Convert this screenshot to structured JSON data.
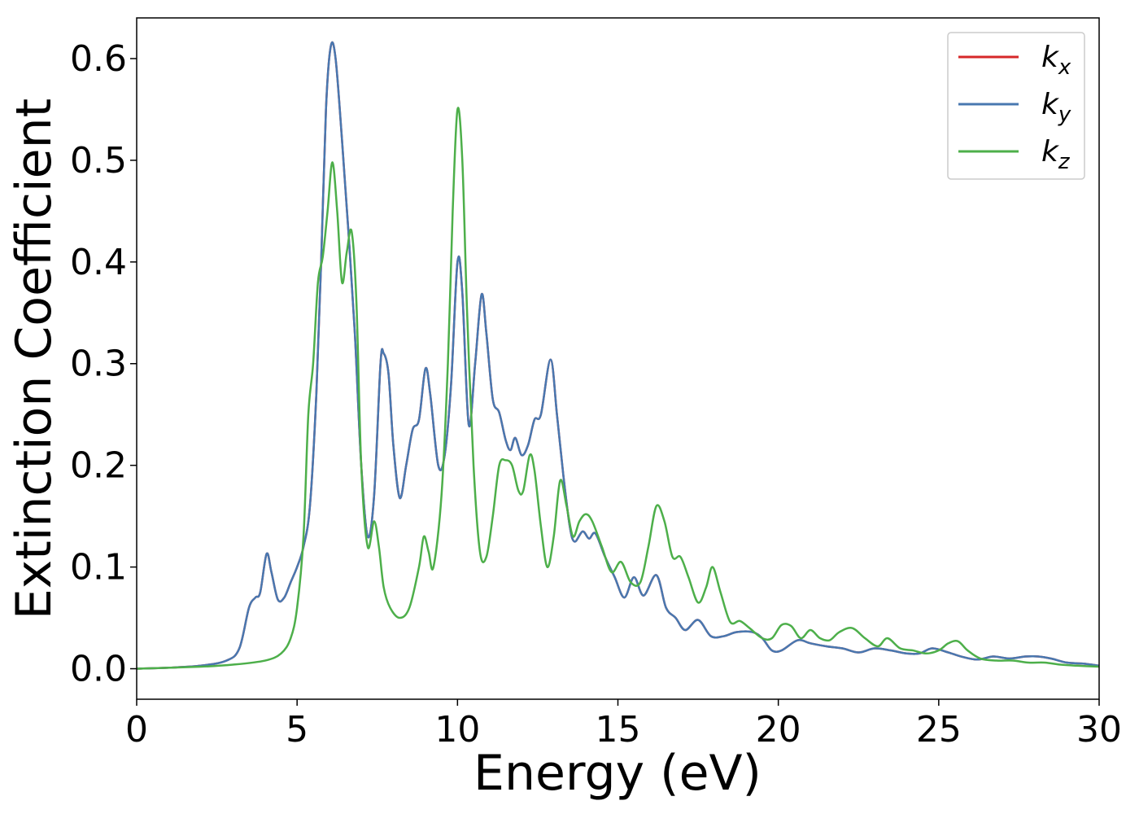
{
  "chart_data": {
    "type": "line",
    "xlabel": "Energy (eV)",
    "ylabel": "Extinction Coefficient",
    "xlim": [
      0,
      30
    ],
    "ylim": [
      -0.03,
      0.64
    ],
    "xticks": [
      0,
      5,
      10,
      15,
      20,
      25,
      30
    ],
    "yticks": [
      0.0,
      0.1,
      0.2,
      0.3,
      0.4,
      0.5,
      0.6
    ],
    "xtick_labels": [
      "0",
      "5",
      "10",
      "15",
      "20",
      "25",
      "30"
    ],
    "ytick_labels": [
      "0.0",
      "0.1",
      "0.2",
      "0.3",
      "0.4",
      "0.5",
      "0.6"
    ],
    "grid": false,
    "legend_position": "top-right",
    "series": [
      {
        "name": "k",
        "subscript": "x",
        "color": "#d62728",
        "points": [
          [
            0,
            0.0
          ],
          [
            1,
            0.001
          ],
          [
            2,
            0.003
          ],
          [
            2.8,
            0.008
          ],
          [
            3.2,
            0.02
          ],
          [
            3.5,
            0.06
          ],
          [
            3.7,
            0.07
          ],
          [
            3.85,
            0.075
          ],
          [
            4.05,
            0.113
          ],
          [
            4.2,
            0.095
          ],
          [
            4.4,
            0.068
          ],
          [
            4.6,
            0.07
          ],
          [
            4.8,
            0.085
          ],
          [
            5.0,
            0.1
          ],
          [
            5.2,
            0.12
          ],
          [
            5.4,
            0.16
          ],
          [
            5.6,
            0.27
          ],
          [
            5.75,
            0.4
          ],
          [
            5.9,
            0.55
          ],
          [
            6.05,
            0.612
          ],
          [
            6.2,
            0.6
          ],
          [
            6.4,
            0.52
          ],
          [
            6.6,
            0.43
          ],
          [
            6.8,
            0.33
          ],
          [
            7.0,
            0.2
          ],
          [
            7.2,
            0.13
          ],
          [
            7.4,
            0.17
          ],
          [
            7.6,
            0.3
          ],
          [
            7.7,
            0.31
          ],
          [
            7.85,
            0.29
          ],
          [
            8.0,
            0.22
          ],
          [
            8.2,
            0.168
          ],
          [
            8.4,
            0.2
          ],
          [
            8.6,
            0.235
          ],
          [
            8.8,
            0.245
          ],
          [
            9.0,
            0.295
          ],
          [
            9.15,
            0.27
          ],
          [
            9.4,
            0.2
          ],
          [
            9.6,
            0.21
          ],
          [
            9.8,
            0.28
          ],
          [
            10.0,
            0.4
          ],
          [
            10.15,
            0.37
          ],
          [
            10.35,
            0.24
          ],
          [
            10.55,
            0.3
          ],
          [
            10.75,
            0.368
          ],
          [
            10.9,
            0.33
          ],
          [
            11.1,
            0.265
          ],
          [
            11.3,
            0.252
          ],
          [
            11.5,
            0.225
          ],
          [
            11.65,
            0.215
          ],
          [
            11.8,
            0.227
          ],
          [
            12.0,
            0.21
          ],
          [
            12.2,
            0.22
          ],
          [
            12.4,
            0.245
          ],
          [
            12.6,
            0.25
          ],
          [
            12.9,
            0.304
          ],
          [
            13.1,
            0.25
          ],
          [
            13.3,
            0.19
          ],
          [
            13.5,
            0.14
          ],
          [
            13.65,
            0.125
          ],
          [
            13.9,
            0.135
          ],
          [
            14.1,
            0.128
          ],
          [
            14.3,
            0.133
          ],
          [
            14.6,
            0.11
          ],
          [
            14.9,
            0.09
          ],
          [
            15.2,
            0.07
          ],
          [
            15.5,
            0.09
          ],
          [
            15.8,
            0.072
          ],
          [
            16.2,
            0.092
          ],
          [
            16.5,
            0.06
          ],
          [
            16.8,
            0.05
          ],
          [
            17.1,
            0.038
          ],
          [
            17.5,
            0.048
          ],
          [
            17.9,
            0.032
          ],
          [
            18.3,
            0.032
          ],
          [
            18.7,
            0.036
          ],
          [
            19.2,
            0.036
          ],
          [
            19.5,
            0.03
          ],
          [
            19.8,
            0.018
          ],
          [
            20.1,
            0.018
          ],
          [
            20.6,
            0.028
          ],
          [
            21.0,
            0.025
          ],
          [
            21.5,
            0.022
          ],
          [
            22.0,
            0.02
          ],
          [
            22.5,
            0.016
          ],
          [
            23.0,
            0.02
          ],
          [
            23.5,
            0.018
          ],
          [
            24.0,
            0.015
          ],
          [
            24.4,
            0.015
          ],
          [
            24.8,
            0.02
          ],
          [
            25.3,
            0.016
          ],
          [
            25.7,
            0.012
          ],
          [
            26.2,
            0.009
          ],
          [
            26.7,
            0.012
          ],
          [
            27.2,
            0.01
          ],
          [
            27.7,
            0.012
          ],
          [
            28.1,
            0.012
          ],
          [
            28.5,
            0.01
          ],
          [
            29.0,
            0.006
          ],
          [
            29.5,
            0.005
          ],
          [
            30,
            0.003
          ]
        ]
      },
      {
        "name": "k",
        "subscript": "y",
        "color": "#4878b0",
        "points": [
          [
            0,
            0.0
          ],
          [
            1,
            0.001
          ],
          [
            2,
            0.003
          ],
          [
            2.8,
            0.008
          ],
          [
            3.2,
            0.02
          ],
          [
            3.5,
            0.06
          ],
          [
            3.7,
            0.07
          ],
          [
            3.85,
            0.075
          ],
          [
            4.05,
            0.113
          ],
          [
            4.2,
            0.095
          ],
          [
            4.4,
            0.068
          ],
          [
            4.6,
            0.07
          ],
          [
            4.8,
            0.085
          ],
          [
            5.0,
            0.1
          ],
          [
            5.2,
            0.12
          ],
          [
            5.4,
            0.16
          ],
          [
            5.6,
            0.27
          ],
          [
            5.75,
            0.4
          ],
          [
            5.9,
            0.55
          ],
          [
            6.05,
            0.612
          ],
          [
            6.2,
            0.6
          ],
          [
            6.4,
            0.52
          ],
          [
            6.6,
            0.43
          ],
          [
            6.8,
            0.33
          ],
          [
            7.0,
            0.2
          ],
          [
            7.2,
            0.13
          ],
          [
            7.4,
            0.17
          ],
          [
            7.6,
            0.3
          ],
          [
            7.7,
            0.31
          ],
          [
            7.85,
            0.29
          ],
          [
            8.0,
            0.22
          ],
          [
            8.2,
            0.168
          ],
          [
            8.4,
            0.2
          ],
          [
            8.6,
            0.235
          ],
          [
            8.8,
            0.245
          ],
          [
            9.0,
            0.295
          ],
          [
            9.15,
            0.27
          ],
          [
            9.4,
            0.2
          ],
          [
            9.6,
            0.21
          ],
          [
            9.8,
            0.28
          ],
          [
            10.0,
            0.4
          ],
          [
            10.15,
            0.37
          ],
          [
            10.35,
            0.24
          ],
          [
            10.55,
            0.3
          ],
          [
            10.75,
            0.368
          ],
          [
            10.9,
            0.33
          ],
          [
            11.1,
            0.265
          ],
          [
            11.3,
            0.252
          ],
          [
            11.5,
            0.225
          ],
          [
            11.65,
            0.215
          ],
          [
            11.8,
            0.227
          ],
          [
            12.0,
            0.21
          ],
          [
            12.2,
            0.22
          ],
          [
            12.4,
            0.245
          ],
          [
            12.6,
            0.25
          ],
          [
            12.9,
            0.304
          ],
          [
            13.1,
            0.25
          ],
          [
            13.3,
            0.19
          ],
          [
            13.5,
            0.14
          ],
          [
            13.65,
            0.125
          ],
          [
            13.9,
            0.135
          ],
          [
            14.1,
            0.128
          ],
          [
            14.3,
            0.133
          ],
          [
            14.6,
            0.11
          ],
          [
            14.9,
            0.09
          ],
          [
            15.2,
            0.07
          ],
          [
            15.5,
            0.09
          ],
          [
            15.8,
            0.072
          ],
          [
            16.2,
            0.092
          ],
          [
            16.5,
            0.06
          ],
          [
            16.8,
            0.05
          ],
          [
            17.1,
            0.038
          ],
          [
            17.5,
            0.048
          ],
          [
            17.9,
            0.032
          ],
          [
            18.3,
            0.032
          ],
          [
            18.7,
            0.036
          ],
          [
            19.2,
            0.036
          ],
          [
            19.5,
            0.03
          ],
          [
            19.8,
            0.018
          ],
          [
            20.1,
            0.018
          ],
          [
            20.6,
            0.028
          ],
          [
            21.0,
            0.025
          ],
          [
            21.5,
            0.022
          ],
          [
            22.0,
            0.02
          ],
          [
            22.5,
            0.016
          ],
          [
            23.0,
            0.02
          ],
          [
            23.5,
            0.018
          ],
          [
            24.0,
            0.015
          ],
          [
            24.4,
            0.015
          ],
          [
            24.8,
            0.02
          ],
          [
            25.3,
            0.016
          ],
          [
            25.7,
            0.012
          ],
          [
            26.2,
            0.009
          ],
          [
            26.7,
            0.012
          ],
          [
            27.2,
            0.01
          ],
          [
            27.7,
            0.012
          ],
          [
            28.1,
            0.012
          ],
          [
            28.5,
            0.01
          ],
          [
            29.0,
            0.006
          ],
          [
            29.5,
            0.005
          ],
          [
            30,
            0.003
          ]
        ]
      },
      {
        "name": "k",
        "subscript": "z",
        "color": "#4daf4a",
        "points": [
          [
            0,
            0.0
          ],
          [
            2,
            0.002
          ],
          [
            3,
            0.004
          ],
          [
            4,
            0.008
          ],
          [
            4.5,
            0.015
          ],
          [
            4.8,
            0.03
          ],
          [
            5.0,
            0.06
          ],
          [
            5.2,
            0.13
          ],
          [
            5.35,
            0.25
          ],
          [
            5.5,
            0.3
          ],
          [
            5.65,
            0.38
          ],
          [
            5.8,
            0.405
          ],
          [
            5.95,
            0.45
          ],
          [
            6.1,
            0.498
          ],
          [
            6.25,
            0.45
          ],
          [
            6.4,
            0.38
          ],
          [
            6.55,
            0.41
          ],
          [
            6.7,
            0.43
          ],
          [
            6.85,
            0.36
          ],
          [
            7.0,
            0.2
          ],
          [
            7.2,
            0.12
          ],
          [
            7.4,
            0.145
          ],
          [
            7.55,
            0.12
          ],
          [
            7.7,
            0.08
          ],
          [
            7.9,
            0.06
          ],
          [
            8.2,
            0.05
          ],
          [
            8.5,
            0.06
          ],
          [
            8.8,
            0.1
          ],
          [
            8.95,
            0.13
          ],
          [
            9.1,
            0.115
          ],
          [
            9.25,
            0.1
          ],
          [
            9.5,
            0.17
          ],
          [
            9.7,
            0.3
          ],
          [
            9.85,
            0.45
          ],
          [
            10.0,
            0.55
          ],
          [
            10.15,
            0.5
          ],
          [
            10.3,
            0.35
          ],
          [
            10.5,
            0.2
          ],
          [
            10.7,
            0.115
          ],
          [
            10.9,
            0.11
          ],
          [
            11.1,
            0.15
          ],
          [
            11.3,
            0.2
          ],
          [
            11.5,
            0.205
          ],
          [
            11.7,
            0.2
          ],
          [
            11.9,
            0.175
          ],
          [
            12.05,
            0.175
          ],
          [
            12.25,
            0.21
          ],
          [
            12.4,
            0.195
          ],
          [
            12.6,
            0.14
          ],
          [
            12.8,
            0.1
          ],
          [
            13.0,
            0.13
          ],
          [
            13.2,
            0.185
          ],
          [
            13.4,
            0.16
          ],
          [
            13.6,
            0.13
          ],
          [
            13.8,
            0.145
          ],
          [
            14.0,
            0.152
          ],
          [
            14.2,
            0.145
          ],
          [
            14.5,
            0.12
          ],
          [
            14.8,
            0.095
          ],
          [
            15.1,
            0.105
          ],
          [
            15.4,
            0.085
          ],
          [
            15.7,
            0.085
          ],
          [
            15.95,
            0.12
          ],
          [
            16.2,
            0.16
          ],
          [
            16.45,
            0.145
          ],
          [
            16.7,
            0.11
          ],
          [
            16.95,
            0.11
          ],
          [
            17.2,
            0.09
          ],
          [
            17.5,
            0.065
          ],
          [
            17.75,
            0.08
          ],
          [
            17.95,
            0.1
          ],
          [
            18.2,
            0.075
          ],
          [
            18.5,
            0.046
          ],
          [
            18.8,
            0.047
          ],
          [
            19.1,
            0.04
          ],
          [
            19.5,
            0.03
          ],
          [
            19.8,
            0.03
          ],
          [
            20.1,
            0.043
          ],
          [
            20.4,
            0.042
          ],
          [
            20.7,
            0.03
          ],
          [
            21.0,
            0.038
          ],
          [
            21.3,
            0.03
          ],
          [
            21.6,
            0.028
          ],
          [
            21.9,
            0.036
          ],
          [
            22.3,
            0.04
          ],
          [
            22.7,
            0.03
          ],
          [
            23.1,
            0.022
          ],
          [
            23.4,
            0.03
          ],
          [
            23.8,
            0.02
          ],
          [
            24.2,
            0.018
          ],
          [
            24.6,
            0.015
          ],
          [
            25.0,
            0.018
          ],
          [
            25.3,
            0.025
          ],
          [
            25.6,
            0.027
          ],
          [
            25.9,
            0.018
          ],
          [
            26.3,
            0.01
          ],
          [
            26.8,
            0.008
          ],
          [
            27.3,
            0.008
          ],
          [
            27.8,
            0.006
          ],
          [
            28.3,
            0.006
          ],
          [
            28.8,
            0.004
          ],
          [
            29.3,
            0.003
          ],
          [
            30,
            0.002
          ]
        ]
      }
    ]
  }
}
